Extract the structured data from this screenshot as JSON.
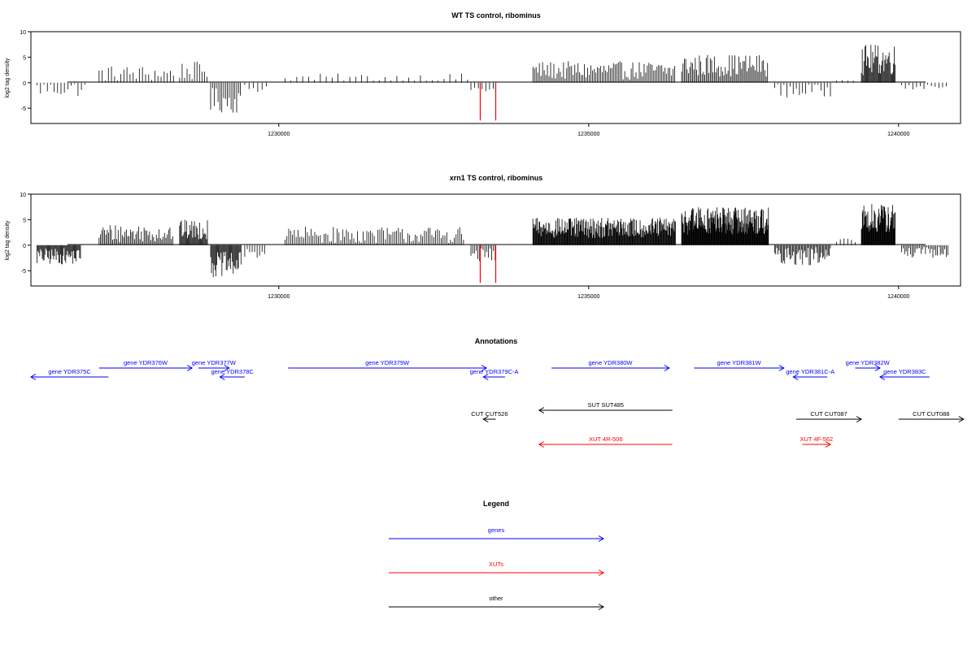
{
  "chart_data": [
    {
      "type": "bar",
      "title": "WT TS control, ribominus",
      "ylabel": "log2 tag density",
      "xlabel": "",
      "xlim": [
        1226000,
        1241000
      ],
      "ylim": [
        -8,
        10
      ],
      "yticks": [
        "-5",
        "0",
        "5",
        "10"
      ],
      "xticks": [
        "1230000",
        "1235000",
        "1240000"
      ],
      "series": [
        {
          "segments": [
            {
              "x0": 1226100,
              "x1": 1226900,
              "mean": -1.2,
              "amp": 1.6,
              "step": 55
            },
            {
              "x0": 1227100,
              "x1": 1228300,
              "mean": 1.8,
              "amp": 1.6,
              "step": 50
            },
            {
              "x0": 1228400,
              "x1": 1228850,
              "mean": 2.3,
              "amp": 1.8,
              "step": 40
            },
            {
              "x0": 1228900,
              "x1": 1229400,
              "mean": -3.5,
              "amp": 2.5,
              "step": 30
            },
            {
              "x0": 1229450,
              "x1": 1229800,
              "mean": -1.0,
              "amp": 1.0,
              "step": 70
            },
            {
              "x0": 1230100,
              "x1": 1233100,
              "mean": 0.9,
              "amp": 0.9,
              "step": 95
            },
            {
              "x0": 1233100,
              "x1": 1233500,
              "mean": -1.3,
              "amp": 0.8,
              "step": 60
            },
            {
              "x0": 1234100,
              "x1": 1236400,
              "mean": 2.4,
              "amp": 1.8,
              "step": 26
            },
            {
              "x0": 1236500,
              "x1": 1237900,
              "mean": 3.4,
              "amp": 2.2,
              "step": 22
            },
            {
              "x0": 1238000,
              "x1": 1238900,
              "mean": -1.5,
              "amp": 1.5,
              "step": 50
            },
            {
              "x0": 1239000,
              "x1": 1239300,
              "mean": 0.6,
              "amp": 0.6,
              "step": 90
            },
            {
              "x0": 1239400,
              "x1": 1239950,
              "mean": 4.5,
              "amp": 3.0,
              "step": 14
            },
            {
              "x0": 1240050,
              "x1": 1240800,
              "mean": -0.6,
              "amp": 0.8,
              "step": 60
            }
          ],
          "highlight": [
            {
              "x": 1233250,
              "y": -7.4
            },
            {
              "x": 1233500,
              "y": -7.4
            }
          ]
        }
      ]
    },
    {
      "type": "bar",
      "title": "xrn1 TS control, ribominus",
      "ylabel": "log2 tag density",
      "xlabel": "",
      "xlim": [
        1226000,
        1241000
      ],
      "ylim": [
        -8,
        10
      ],
      "yticks": [
        "-5",
        "0",
        "5",
        "10"
      ],
      "xticks": [
        "1230000",
        "1235000",
        "1240000"
      ],
      "series": [
        {
          "segments": [
            {
              "x0": 1226100,
              "x1": 1226800,
              "mean": -2.2,
              "amp": 1.6,
              "step": 14
            },
            {
              "x0": 1227100,
              "x1": 1228300,
              "mean": 2.4,
              "amp": 1.8,
              "step": 22
            },
            {
              "x0": 1228400,
              "x1": 1228850,
              "mean": 3.0,
              "amp": 2.0,
              "step": 14
            },
            {
              "x0": 1228900,
              "x1": 1229400,
              "mean": -3.8,
              "amp": 2.5,
              "step": 14
            },
            {
              "x0": 1229450,
              "x1": 1229800,
              "mean": -1.5,
              "amp": 1.0,
              "step": 40
            },
            {
              "x0": 1230100,
              "x1": 1233000,
              "mean": 2.0,
              "amp": 1.6,
              "step": 30
            },
            {
              "x0": 1233100,
              "x1": 1233500,
              "mean": -2.0,
              "amp": 1.4,
              "step": 28
            },
            {
              "x0": 1234100,
              "x1": 1236400,
              "mean": 3.4,
              "amp": 2.0,
              "step": 10
            },
            {
              "x0": 1236500,
              "x1": 1237900,
              "mean": 4.8,
              "amp": 2.8,
              "step": 8
            },
            {
              "x0": 1238000,
              "x1": 1238900,
              "mean": -2.2,
              "amp": 1.8,
              "step": 18
            },
            {
              "x0": 1239000,
              "x1": 1239300,
              "mean": 0.8,
              "amp": 0.6,
              "step": 60
            },
            {
              "x0": 1239400,
              "x1": 1239950,
              "mean": 5.2,
              "amp": 3.0,
              "step": 8
            },
            {
              "x0": 1240050,
              "x1": 1240800,
              "mean": -1.5,
              "amp": 1.2,
              "step": 24
            }
          ],
          "highlight": [
            {
              "x": 1233250,
              "y": -7.4
            },
            {
              "x": 1233500,
              "y": -7.4
            }
          ]
        }
      ]
    }
  ],
  "annotations": {
    "title": "Annotations",
    "colors": {
      "gene": "#0000ff",
      "xut": "#ff0000",
      "other": "#000000"
    },
    "features": [
      {
        "label": "gene YDR375C",
        "kind": "gene",
        "start": 1226000,
        "end": 1227250,
        "strand": "-",
        "row": 1
      },
      {
        "label": "gene YDR376W",
        "kind": "gene",
        "start": 1227100,
        "end": 1228600,
        "strand": "+",
        "row": 0
      },
      {
        "label": "gene YDR377W",
        "kind": "gene",
        "start": 1228700,
        "end": 1229200,
        "strand": "+",
        "row": 0
      },
      {
        "label": "gene YDR378C",
        "kind": "gene",
        "start": 1229050,
        "end": 1229450,
        "strand": "-",
        "row": 1
      },
      {
        "label": "gene YDR379W",
        "kind": "gene",
        "start": 1230150,
        "end": 1233350,
        "strand": "+",
        "row": 0
      },
      {
        "label": "gene YDR379C-A",
        "kind": "gene",
        "start": 1233300,
        "end": 1233650,
        "strand": "-",
        "row": 1
      },
      {
        "label": "gene YDR380W",
        "kind": "gene",
        "start": 1234400,
        "end": 1236300,
        "strand": "+",
        "row": 0
      },
      {
        "label": "gene YDR381W",
        "kind": "gene",
        "start": 1236700,
        "end": 1238150,
        "strand": "+",
        "row": 0
      },
      {
        "label": "gene YDR381C-A",
        "kind": "gene",
        "start": 1238300,
        "end": 1238850,
        "strand": "-",
        "row": 1
      },
      {
        "label": "gene YDR382W",
        "kind": "gene",
        "start": 1239300,
        "end": 1239700,
        "strand": "+",
        "row": 0
      },
      {
        "label": "gene YDR383C",
        "kind": "gene",
        "start": 1239700,
        "end": 1240500,
        "strand": "-",
        "row": 1
      },
      {
        "label": "SUT SUT485",
        "kind": "other",
        "start": 1234200,
        "end": 1236350,
        "strand": "-",
        "row": 2
      },
      {
        "label": "CUT CUT526",
        "kind": "other",
        "start": 1233300,
        "end": 1233500,
        "strand": "-",
        "row": 3
      },
      {
        "label": "CUT CUT087",
        "kind": "other",
        "start": 1238350,
        "end": 1239400,
        "strand": "+",
        "row": 3
      },
      {
        "label": "CUT CUT088",
        "kind": "other",
        "start": 1240000,
        "end": 1241050,
        "strand": "+",
        "row": 3
      },
      {
        "label": "XUT 4R-506",
        "kind": "xut",
        "start": 1234200,
        "end": 1236350,
        "strand": "-",
        "row": 4
      },
      {
        "label": "XUT 4F-562",
        "kind": "xut",
        "start": 1238450,
        "end": 1238900,
        "strand": "+",
        "row": 4
      }
    ]
  },
  "legend": {
    "title": "Legend",
    "items": [
      {
        "label": "genes",
        "color": "#0000ff"
      },
      {
        "label": "XUTs",
        "color": "#ff0000"
      },
      {
        "label": "other",
        "color": "#000000"
      }
    ]
  }
}
